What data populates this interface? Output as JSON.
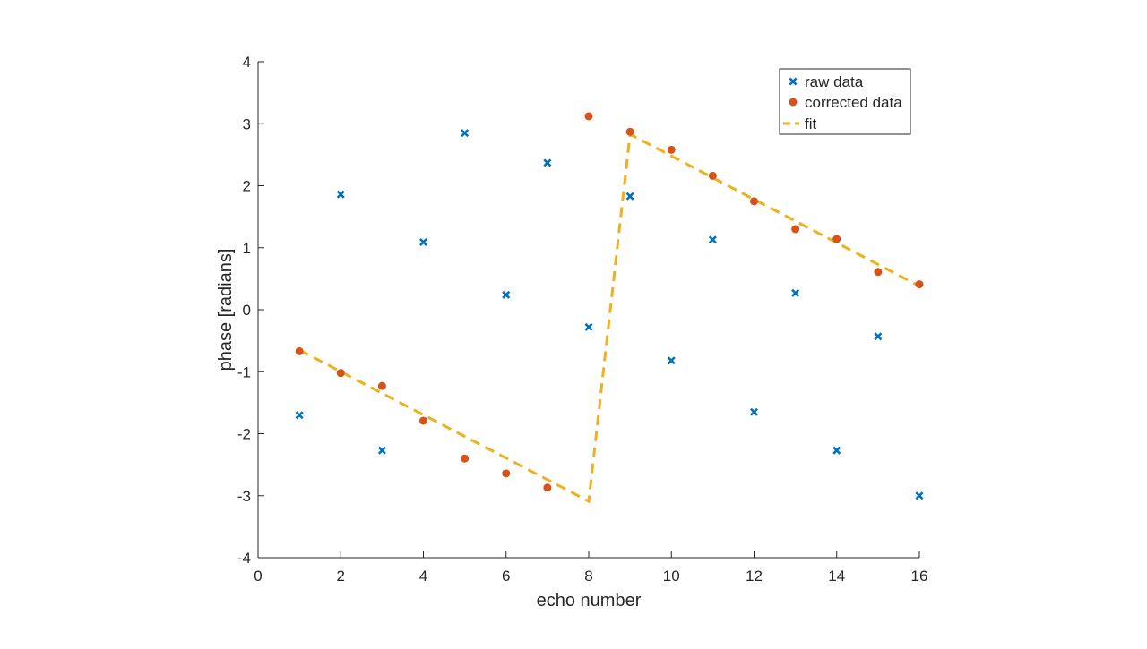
{
  "chart_data": {
    "type": "scatter",
    "title": "",
    "xlabel": "echo number",
    "ylabel": "phase [radians]",
    "xlim": [
      0,
      16
    ],
    "ylim": [
      -4,
      4
    ],
    "xticks": [
      0,
      2,
      4,
      6,
      8,
      10,
      12,
      14,
      16
    ],
    "yticks": [
      -4,
      -3,
      -2,
      -1,
      0,
      1,
      2,
      3,
      4
    ],
    "grid": false,
    "legend_position": "top-right",
    "colors": {
      "raw": "#0072BD",
      "corrected": "#D95319",
      "fit": "#EDB120"
    },
    "series": [
      {
        "name": "raw data",
        "marker": "x",
        "x": [
          1,
          2,
          3,
          4,
          5,
          6,
          7,
          8,
          9,
          10,
          11,
          12,
          13,
          14,
          15,
          16
        ],
        "y": [
          -1.7,
          1.86,
          -2.27,
          1.09,
          2.85,
          0.24,
          2.37,
          -0.28,
          1.83,
          -0.82,
          1.13,
          -1.65,
          0.27,
          -2.27,
          -0.43,
          -3.0
        ]
      },
      {
        "name": "corrected data",
        "marker": "circle",
        "x": [
          1,
          2,
          3,
          4,
          5,
          6,
          7,
          8,
          9,
          10,
          11,
          12,
          13,
          14,
          15,
          16
        ],
        "y": [
          -0.67,
          -1.02,
          -1.23,
          -1.79,
          -2.4,
          -2.64,
          -2.87,
          3.12,
          2.87,
          2.58,
          2.16,
          1.75,
          1.3,
          1.14,
          0.61,
          0.41
        ]
      },
      {
        "name": "fit",
        "marker": "dashed-line",
        "x": [
          1,
          8,
          8,
          9,
          16
        ],
        "y": [
          -0.65,
          -3.09,
          -3.09,
          2.83,
          0.38
        ]
      }
    ]
  }
}
